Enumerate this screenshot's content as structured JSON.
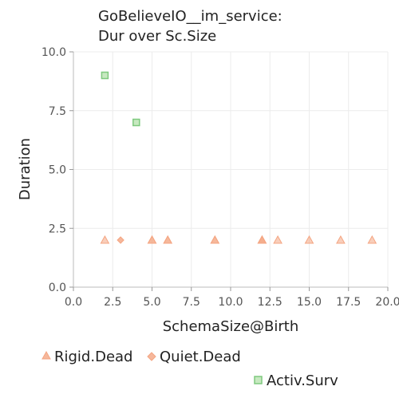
{
  "chart_data": {
    "type": "scatter",
    "title_lines": [
      "GoBelieveIO__im_service:",
      "Dur over Sc.Size"
    ],
    "xlabel": "SchemaSize@Birth",
    "ylabel": "Duration",
    "xlim": [
      0,
      20
    ],
    "ylim": [
      0,
      10
    ],
    "x_ticks": [
      0,
      2.5,
      5,
      7.5,
      10,
      12.5,
      15,
      17.5,
      20
    ],
    "x_tick_labels": [
      "0.0",
      "2.5",
      "5.0",
      "7.5",
      "10.0",
      "12.5",
      "15.0",
      "17.5",
      "20.0"
    ],
    "y_ticks": [
      0,
      2.5,
      5,
      7.5,
      10
    ],
    "y_tick_labels": [
      "0.0",
      "2.5",
      "5.0",
      "7.5",
      "10.0"
    ],
    "grid": true,
    "legend_position": "bottom",
    "series": [
      {
        "name": "Rigid.Dead",
        "marker": "triangle",
        "color": "#f4a582",
        "points": [
          {
            "x": 2,
            "y": 2
          },
          {
            "x": 5,
            "y": 2
          },
          {
            "x": 5,
            "y": 2
          },
          {
            "x": 6,
            "y": 2
          },
          {
            "x": 6,
            "y": 2
          },
          {
            "x": 9,
            "y": 2
          },
          {
            "x": 9,
            "y": 2
          },
          {
            "x": 12,
            "y": 2
          },
          {
            "x": 12,
            "y": 2
          },
          {
            "x": 12,
            "y": 2
          },
          {
            "x": 13,
            "y": 2
          },
          {
            "x": 15,
            "y": 2
          },
          {
            "x": 17,
            "y": 2
          },
          {
            "x": 19,
            "y": 2
          }
        ]
      },
      {
        "name": "Quiet.Dead",
        "marker": "diamond",
        "color": "#f4a582",
        "points": [
          {
            "x": 3,
            "y": 2
          }
        ]
      },
      {
        "name": "Activ.Surv",
        "marker": "square",
        "color": "#7fc97f",
        "points": [
          {
            "x": 2,
            "y": 9
          },
          {
            "x": 4,
            "y": 7
          }
        ]
      }
    ]
  }
}
